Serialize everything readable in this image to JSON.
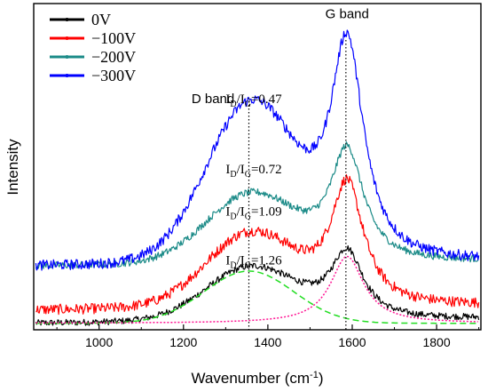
{
  "chart_data": {
    "type": "line",
    "title": "",
    "xlabel": "Wavenumber (cm",
    "xlabel_superscript": "-1",
    "xlabel_suffix": ")",
    "ylabel": "Intensity",
    "xlim": [
      845,
      1905
    ],
    "ylim": [
      0,
      1.0
    ],
    "xticks": [
      1000,
      1200,
      1400,
      1600,
      1800
    ],
    "y_tick_labels_shown": false,
    "grid": false,
    "legend_position": "top-left",
    "reference_lines_x": [
      1355,
      1585
    ],
    "band_labels": [
      {
        "text": "D band",
        "x": 1270,
        "y": 0.695
      },
      {
        "text": "G band",
        "x": 1588,
        "y": 0.955
      }
    ],
    "ratio_labels": [
      {
        "main": "I",
        "sub1": "D",
        "slash": "/I",
        "sub2": "G",
        "value": "=0.47",
        "x": 1300,
        "y": 0.695
      },
      {
        "main": "I",
        "sub1": "D",
        "slash": "/I",
        "sub2": "G",
        "value": "=0.72",
        "x": 1300,
        "y": 0.48
      },
      {
        "main": "I",
        "sub1": "D",
        "slash": "/I",
        "sub2": "G",
        "value": "=1.09",
        "x": 1300,
        "y": 0.35
      },
      {
        "main": "I",
        "sub1": "D",
        "slash": "/I",
        "sub2": "G",
        "value": "=1.26",
        "x": 1300,
        "y": 0.2
      }
    ],
    "series": [
      {
        "name": "0V",
        "color": "#000000",
        "offset": 0.02,
        "d_amp": 0.16,
        "g_amp": 0.205,
        "noise": 0.01
      },
      {
        "name": "−100V",
        "color": "#ff0000",
        "offset": 0.06,
        "d_amp": 0.22,
        "g_amp": 0.37,
        "noise": 0.016
      },
      {
        "name": "−200V",
        "color": "#1a8a87",
        "offset": 0.195,
        "d_amp": 0.205,
        "g_amp": 0.34,
        "noise": 0.011
      },
      {
        "name": "−300V",
        "color": "#0000ff",
        "offset": 0.195,
        "d_amp": 0.475,
        "g_amp": 0.66,
        "noise": 0.016
      }
    ],
    "fit_components": [
      {
        "component": "D",
        "color": "#22dd22",
        "style": "dashed",
        "center": 1355,
        "width": 150,
        "amp": 0.16,
        "offset": 0.02
      },
      {
        "component": "G",
        "color": "#ff1493",
        "style": "dotted",
        "center": 1588,
        "width": 48,
        "amp": 0.205,
        "offset": 0.02
      }
    ],
    "peak_positions": {
      "D": 1360,
      "G": 1588
    }
  }
}
